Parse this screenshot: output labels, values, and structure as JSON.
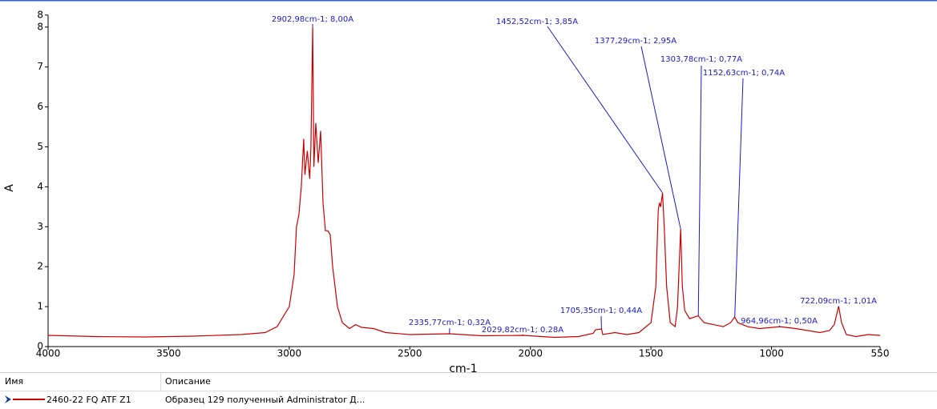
{
  "chart_data": {
    "type": "line",
    "x_label": "cm-1",
    "y_label": "A",
    "xlim": [
      4000,
      550
    ],
    "ylim": [
      0,
      8.3
    ],
    "xticks": [
      4000,
      3500,
      3000,
      2500,
      2000,
      1500,
      1000,
      550
    ],
    "yticks": [
      0,
      1,
      2,
      3,
      4,
      5,
      6,
      7,
      8,
      {
        "value": 8.3,
        "label": "8"
      }
    ],
    "series": [
      {
        "name": "2460-22 FQ ATF Z1",
        "color": "#cc0000",
        "x": [
          4000,
          3800,
          3600,
          3400,
          3200,
          3100,
          3050,
          3000,
          2980,
          2970,
          2960,
          2950,
          2940,
          2935,
          2925,
          2915,
          2910,
          2903,
          2898,
          2890,
          2880,
          2870,
          2860,
          2850,
          2840,
          2830,
          2820,
          2800,
          2780,
          2750,
          2725,
          2700,
          2650,
          2600,
          2500,
          2336,
          2200,
          2030,
          1900,
          1800,
          1740,
          1730,
          1705,
          1700,
          1650,
          1600,
          1550,
          1500,
          1480,
          1470,
          1465,
          1460,
          1452,
          1445,
          1435,
          1420,
          1400,
          1390,
          1377,
          1370,
          1360,
          1340,
          1304,
          1280,
          1200,
          1170,
          1153,
          1140,
          1100,
          1050,
          965,
          900,
          800,
          760,
          740,
          722,
          710,
          690,
          650,
          600,
          550
        ],
        "values": [
          0.28,
          0.25,
          0.24,
          0.26,
          0.3,
          0.35,
          0.5,
          1.0,
          1.8,
          3.0,
          3.3,
          4.0,
          5.2,
          4.3,
          4.9,
          4.2,
          5.0,
          8.0,
          4.5,
          5.6,
          4.6,
          5.4,
          3.6,
          2.9,
          2.9,
          2.8,
          2.0,
          1.0,
          0.6,
          0.45,
          0.55,
          0.48,
          0.45,
          0.35,
          0.3,
          0.32,
          0.27,
          0.28,
          0.23,
          0.25,
          0.33,
          0.42,
          0.44,
          0.3,
          0.35,
          0.3,
          0.35,
          0.6,
          1.5,
          3.4,
          3.6,
          3.5,
          3.85,
          3.0,
          1.5,
          0.6,
          0.5,
          1.0,
          2.95,
          1.5,
          0.9,
          0.7,
          0.77,
          0.6,
          0.5,
          0.6,
          0.74,
          0.6,
          0.5,
          0.45,
          0.5,
          0.45,
          0.35,
          0.4,
          0.55,
          1.01,
          0.6,
          0.3,
          0.25,
          0.3,
          0.28
        ]
      }
    ],
    "annotations": [
      {
        "label": "2902,98cm-1; 8,00A",
        "x": 2902.98,
        "y": 8.0
      },
      {
        "label": "1452,52cm-1; 3,85A",
        "x": 1452.52,
        "y": 3.85
      },
      {
        "label": "1377,29cm-1; 2,95A",
        "x": 1377.29,
        "y": 2.95
      },
      {
        "label": "1303,78cm-1; 0,77A",
        "x": 1303.78,
        "y": 0.77
      },
      {
        "label": "1152,63cm-1; 0,74A",
        "x": 1152.63,
        "y": 0.74
      },
      {
        "label": "964,96cm-1; 0,50A",
        "x": 964.96,
        "y": 0.5
      },
      {
        "label": "722,09cm-1; 1,01A",
        "x": 722.09,
        "y": 1.01
      },
      {
        "label": "1705,35cm-1; 0,44A",
        "x": 1705.35,
        "y": 0.44
      },
      {
        "label": "2029,82cm-1; 0,28A",
        "x": 2029.82,
        "y": 0.28
      },
      {
        "label": "2335,77cm-1; 0,32A",
        "x": 2335.77,
        "y": 0.32
      }
    ]
  },
  "table": {
    "headers": [
      "Имя",
      "Описание"
    ],
    "rows": [
      {
        "description": "Образец 129 полученный Administrator Д..."
      }
    ]
  }
}
